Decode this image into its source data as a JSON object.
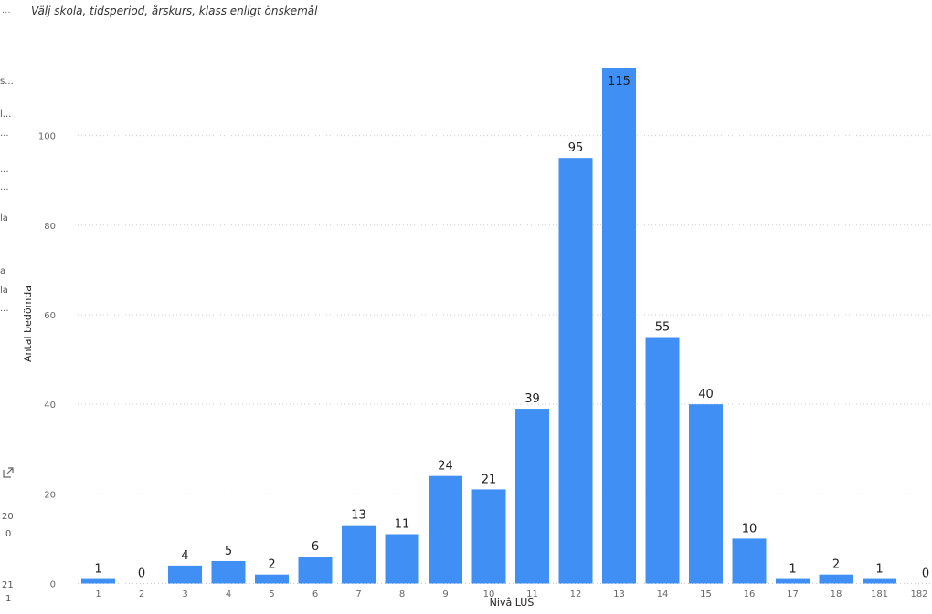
{
  "header": {
    "subtitle": "Välj skola, tidsperiod, årskurs, klass enligt önskemål"
  },
  "left_panel": {
    "truncation_marker": "...",
    "fragments": [
      {
        "text": "s...",
        "name": "sidebar-fragment-1"
      },
      {
        "text": "l...",
        "name": "sidebar-fragment-2"
      },
      {
        "text": "...",
        "name": "sidebar-fragment-3"
      },
      {
        "text": "...",
        "name": "sidebar-fragment-4"
      },
      {
        "text": "...",
        "name": "sidebar-fragment-5"
      },
      {
        "text": "la",
        "name": "sidebar-fragment-6"
      },
      {
        "text": "a",
        "name": "sidebar-fragment-7"
      },
      {
        "text": "la",
        "name": "sidebar-fragment-8"
      },
      {
        "text": "...",
        "name": "sidebar-fragment-9"
      },
      {
        "text": "20",
        "name": "sidebar-fragment-10"
      },
      {
        "text": "0",
        "name": "sidebar-fragment-11"
      },
      {
        "text": "21",
        "name": "sidebar-fragment-12"
      },
      {
        "text": "1",
        "name": "sidebar-fragment-13"
      }
    ],
    "expand_icon": "expand-icon"
  },
  "chart_data": {
    "type": "bar",
    "categories": [
      "1",
      "2",
      "3",
      "4",
      "5",
      "6",
      "7",
      "8",
      "9",
      "10",
      "11",
      "12",
      "13",
      "14",
      "15",
      "16",
      "17",
      "18",
      "181",
      "182"
    ],
    "values": [
      1,
      0,
      4,
      5,
      2,
      6,
      13,
      11,
      24,
      21,
      39,
      95,
      115,
      55,
      40,
      10,
      1,
      2,
      1,
      0
    ],
    "xlabel": "Nivå LUS",
    "ylabel": "Antal bedömda",
    "ylim": [
      0,
      115
    ],
    "yticks": [
      0,
      20,
      40,
      60,
      80,
      100
    ],
    "grid": true,
    "bar_color": "#3f8ff5"
  }
}
